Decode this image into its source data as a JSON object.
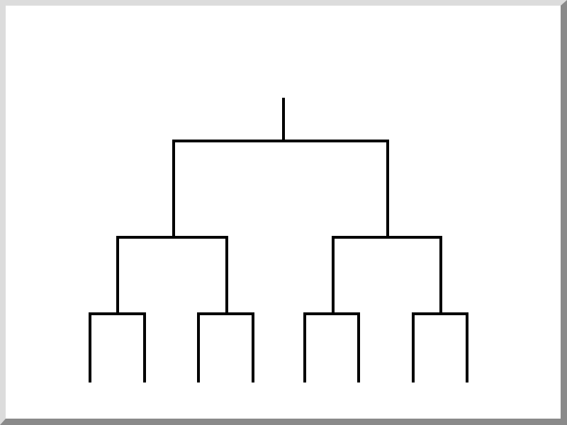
{
  "diagram": {
    "type": "binary-tree",
    "levels": 4,
    "leaf_count": 8,
    "stroke_color": "#000000",
    "background_color": "#ffffff",
    "frame_highlight_color": "#dcdcdc",
    "frame_shadow_color": "#8a8a8a"
  }
}
